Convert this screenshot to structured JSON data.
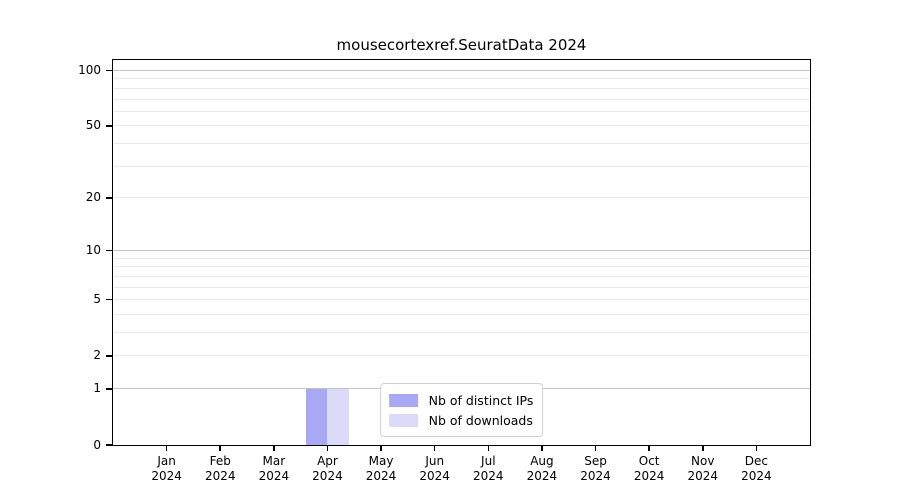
{
  "chart_data": {
    "type": "bar",
    "title": "mousecortexref.SeuratData 2024",
    "categories": [
      "Jan",
      "Feb",
      "Mar",
      "Apr",
      "May",
      "Jun",
      "Jul",
      "Aug",
      "Sep",
      "Oct",
      "Nov",
      "Dec"
    ],
    "category_year": "2024",
    "series": [
      {
        "name": "Nb of distinct IPs",
        "color": "#a8a8f4",
        "values": [
          0,
          0,
          0,
          1,
          0,
          0,
          0,
          0,
          0,
          0,
          0,
          0
        ]
      },
      {
        "name": "Nb of downloads",
        "color": "#dbdbf9",
        "values": [
          0,
          0,
          0,
          1,
          0,
          0,
          0,
          0,
          0,
          0,
          0,
          0
        ]
      }
    ],
    "xlabel": "",
    "ylabel": "",
    "yscale": "log1p",
    "ylim": [
      0,
      114
    ],
    "ytick_values": [
      0,
      1,
      2,
      5,
      10,
      20,
      50,
      100
    ],
    "ytick_labels": [
      "0",
      "1",
      "2",
      "5",
      "10",
      "20",
      "50",
      "100"
    ],
    "major_grid_values": [
      1,
      10,
      100
    ],
    "minor_grid_values": [
      2,
      3,
      4,
      5,
      6,
      7,
      8,
      9,
      20,
      30,
      40,
      50,
      60,
      70,
      80,
      90
    ],
    "grid": "on",
    "legend_position": "lower center inside",
    "legend_items": [
      {
        "label": "Nb of distinct IPs",
        "color": "#a8a8f4"
      },
      {
        "label": "Nb of downloads",
        "color": "#dbdbf9"
      }
    ]
  },
  "colors": {
    "background": "#ffffff",
    "axis": "#000000",
    "major_grid": "#c3c3c3",
    "minor_grid": "#eaeaea",
    "legend_border": "#d0d0d0"
  }
}
